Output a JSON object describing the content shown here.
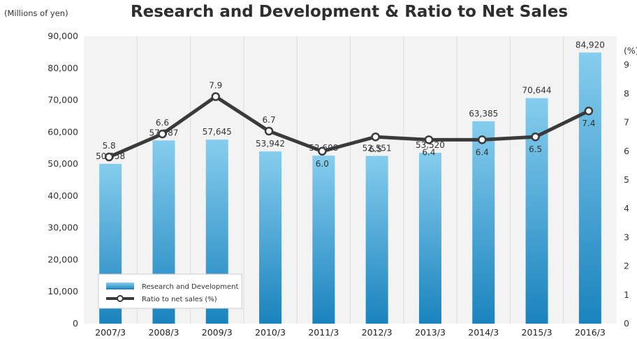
{
  "chart_data": {
    "type": "bar",
    "title": "Research and Development & Ratio to Net Sales",
    "y_unit_label": "(Millions of yen)",
    "y2_unit_label": "(%)",
    "categories": [
      "2007/3",
      "2008/3",
      "2009/3",
      "2010/3",
      "2011/3",
      "2012/3",
      "2013/3",
      "2014/3",
      "2015/3",
      "2016/3"
    ],
    "series": [
      {
        "name": "Research and Development",
        "type": "bar",
        "axis": "left",
        "values": [
          50058,
          57387,
          57645,
          53942,
          52608,
          52551,
          53520,
          63385,
          70644,
          84920
        ],
        "labels": [
          "50,058",
          "57,387",
          "57,645",
          "53,942",
          "52,608",
          "52,551",
          "53,520",
          "63,385",
          "70,644",
          "84,920"
        ]
      },
      {
        "name": "Ratio to net sales (%)",
        "type": "line",
        "axis": "right",
        "values": [
          5.8,
          6.6,
          7.9,
          6.7,
          6.0,
          6.5,
          6.4,
          6.4,
          6.5,
          7.4
        ],
        "labels": [
          "5.8",
          "6.6",
          "7.9",
          "6.7",
          "6.0",
          "6.5",
          "6.4",
          "6.4",
          "6.5",
          "7.4"
        ]
      }
    ],
    "ylim": [
      0,
      90000
    ],
    "y_ticks": [
      "0",
      "10,000",
      "20,000",
      "30,000",
      "40,000",
      "50,000",
      "60,000",
      "70,000",
      "80,000",
      "90,000"
    ],
    "y2lim": [
      0,
      10
    ],
    "y2_ticks": [
      "0",
      "1",
      "2",
      "3",
      "4",
      "5",
      "6",
      "7",
      "8",
      "9"
    ],
    "grid": "vertical",
    "legend_position": "bottom-left"
  },
  "colors": {
    "bar_top": "#86cdee",
    "bar_bottom": "#1a83bd",
    "line": "#3a3a3a",
    "plot_bg": "#f3f3f3",
    "grid": "#dcdcdc"
  }
}
